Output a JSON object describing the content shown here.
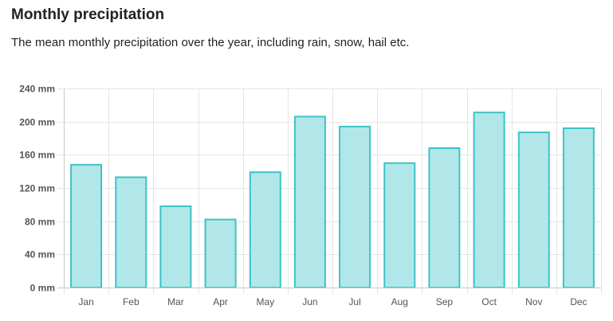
{
  "header": {
    "title": "Monthly precipitation",
    "subtitle": "The mean monthly precipitation over the year, including rain, snow, hail etc."
  },
  "chart_data": {
    "type": "bar",
    "categories": [
      "Jan",
      "Feb",
      "Mar",
      "Apr",
      "May",
      "Jun",
      "Jul",
      "Aug",
      "Sep",
      "Oct",
      "Nov",
      "Dec"
    ],
    "values": [
      148,
      133,
      98,
      82,
      139,
      206,
      194,
      150,
      168,
      211,
      187,
      192
    ],
    "y_ticks": [
      "0 mm",
      "40 mm",
      "80 mm",
      "120 mm",
      "160 mm",
      "200 mm",
      "240 mm"
    ],
    "ylim": [
      0,
      240
    ],
    "grid": true,
    "colors": {
      "bar_fill": "#b2e7ea",
      "bar_stroke": "#3cc3c6",
      "grid": "#e5e5e5",
      "axis": "#c8c8c8"
    }
  }
}
